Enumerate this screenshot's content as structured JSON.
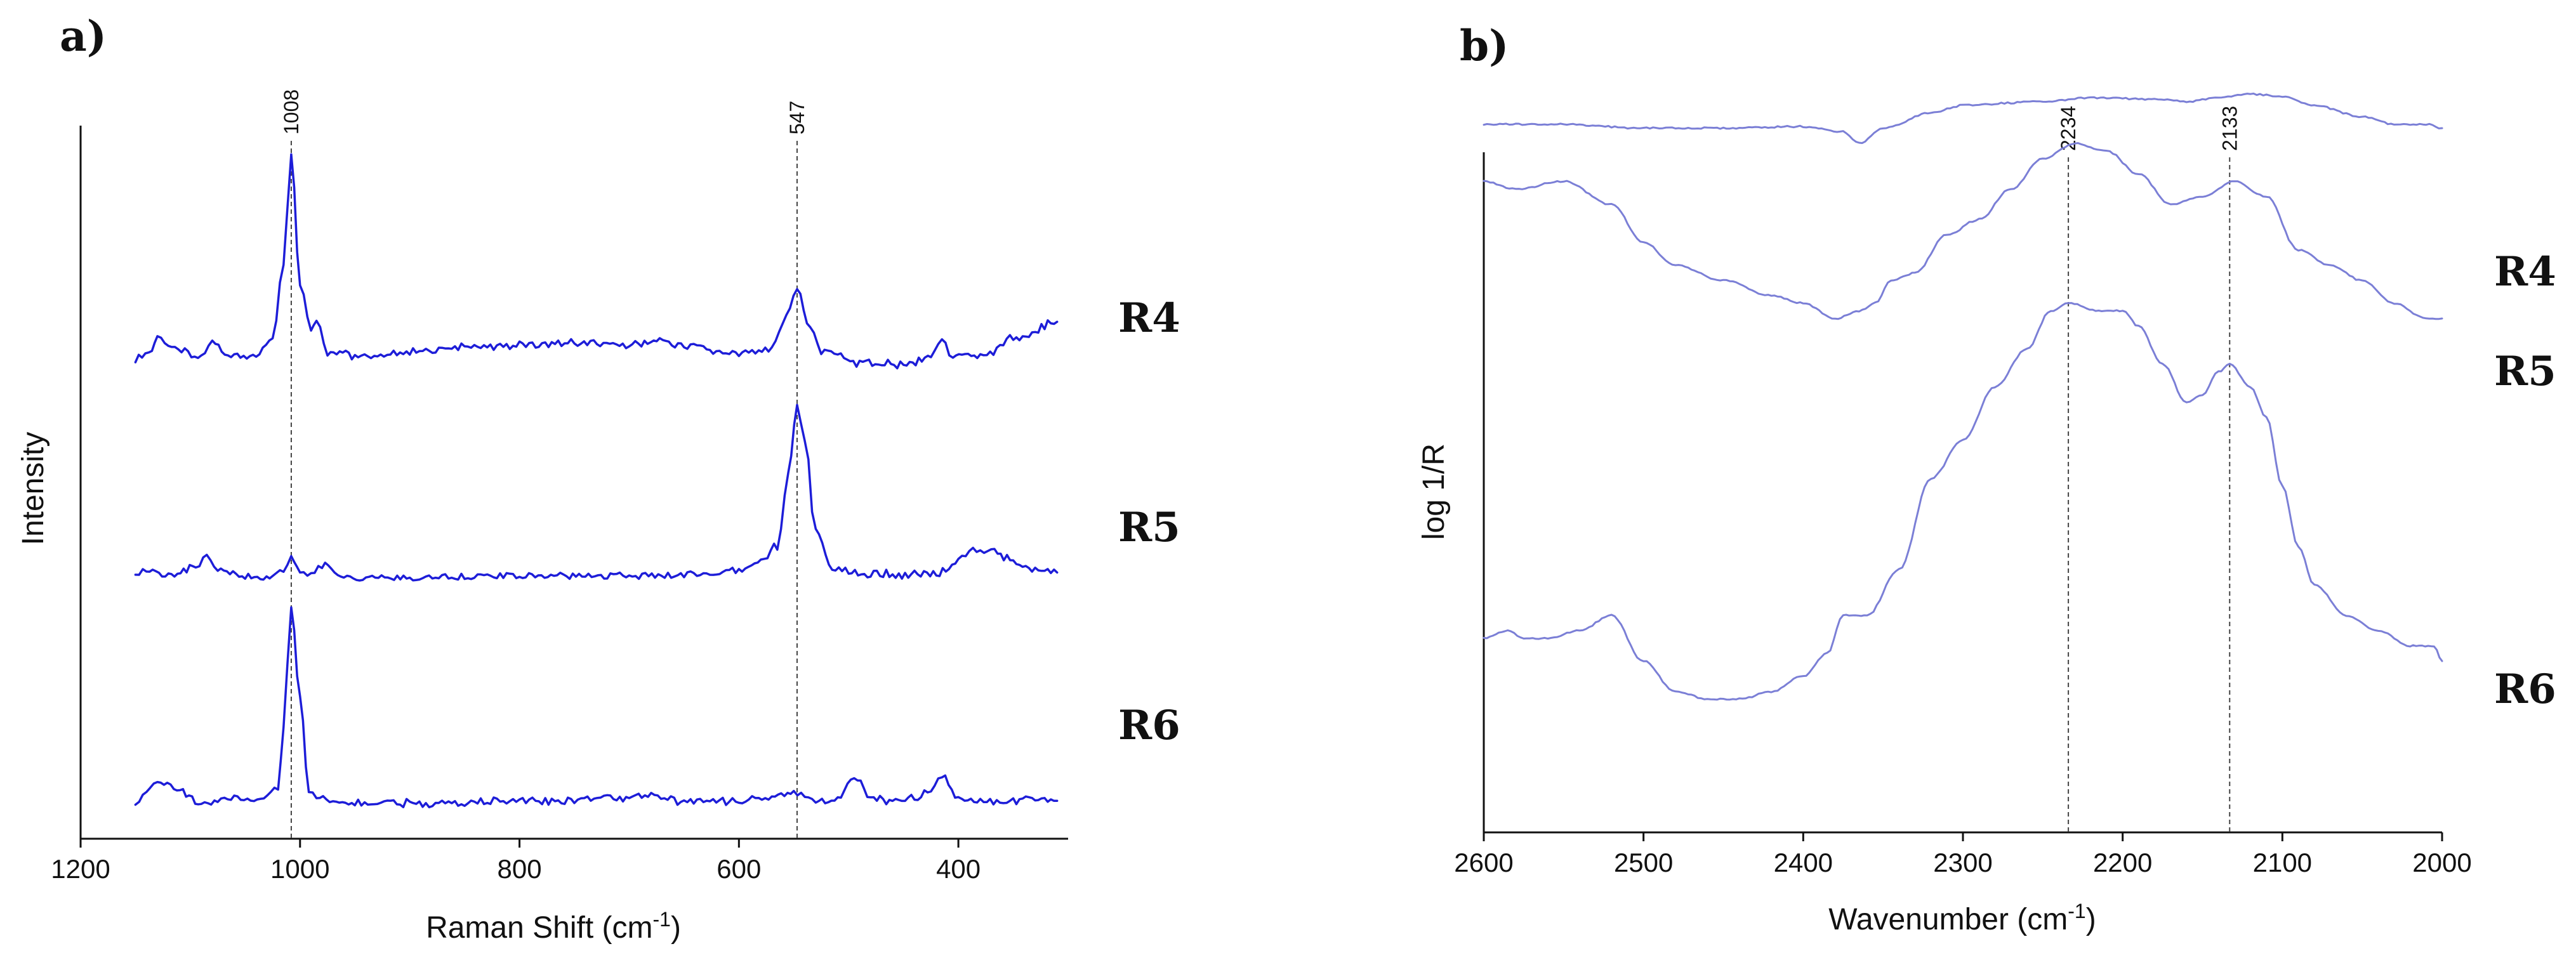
{
  "chart_data": [
    {
      "panel": "a)",
      "type": "line",
      "xlabel": "Raman Shift (cm",
      "xlabel_sup": "-1",
      "xlabel_tail": ")",
      "ylabel": "Intensity",
      "xlim": [
        1200,
        300
      ],
      "y_ticks_shown": false,
      "x_ticks": [
        1200,
        1000,
        800,
        600,
        400
      ],
      "color": "#1d1dd8",
      "reference_lines": [
        {
          "x": 1008,
          "label": "1008"
        },
        {
          "x": 547,
          "label": "547"
        }
      ],
      "series": [
        {
          "name": "R4",
          "x": [
            1150,
            1135,
            1130,
            1120,
            1090,
            1080,
            1060,
            1040,
            1025,
            1015,
            1008,
            1000,
            990,
            985,
            975,
            950,
            900,
            850,
            800,
            750,
            700,
            675,
            650,
            600,
            570,
            560,
            547,
            535,
            525,
            510,
            490,
            470,
            450,
            425,
            415,
            405,
            380,
            350,
            310
          ],
          "y": [
            0.05,
            0.08,
            0.15,
            0.1,
            0.06,
            0.12,
            0.06,
            0.06,
            0.15,
            0.48,
            1.0,
            0.38,
            0.18,
            0.22,
            0.08,
            0.06,
            0.08,
            0.1,
            0.11,
            0.12,
            0.11,
            0.14,
            0.1,
            0.07,
            0.1,
            0.22,
            0.37,
            0.18,
            0.09,
            0.07,
            0.03,
            0.03,
            0.02,
            0.06,
            0.15,
            0.06,
            0.05,
            0.14,
            0.22
          ]
        },
        {
          "name": "R5",
          "x": [
            1150,
            1140,
            1120,
            1095,
            1085,
            1075,
            1050,
            1025,
            1015,
            1008,
            1000,
            990,
            980,
            960,
            900,
            850,
            800,
            700,
            650,
            600,
            580,
            565,
            555,
            547,
            540,
            530,
            515,
            500,
            480,
            460,
            440,
            420,
            400,
            390,
            380,
            370,
            350,
            330,
            310
          ],
          "y": [
            0.05,
            0.08,
            0.05,
            0.1,
            0.16,
            0.08,
            0.05,
            0.04,
            0.08,
            0.16,
            0.07,
            0.06,
            0.11,
            0.04,
            0.04,
            0.05,
            0.05,
            0.05,
            0.06,
            0.08,
            0.14,
            0.22,
            0.62,
            1.0,
            0.82,
            0.3,
            0.1,
            0.08,
            0.06,
            0.06,
            0.06,
            0.06,
            0.14,
            0.18,
            0.2,
            0.19,
            0.14,
            0.08,
            0.07
          ]
        },
        {
          "name": "R6",
          "x": [
            1150,
            1140,
            1130,
            1115,
            1090,
            1060,
            1030,
            1020,
            1015,
            1008,
            1000,
            992,
            985,
            970,
            950,
            900,
            850,
            800,
            750,
            720,
            680,
            650,
            600,
            570,
            550,
            540,
            530,
            510,
            495,
            480,
            460,
            440,
            425,
            415,
            400,
            380,
            350,
            330,
            310
          ],
          "y": [
            0.02,
            0.08,
            0.14,
            0.1,
            0.03,
            0.05,
            0.05,
            0.1,
            0.4,
            1.0,
            0.55,
            0.1,
            0.05,
            0.04,
            0.03,
            0.03,
            0.03,
            0.04,
            0.04,
            0.05,
            0.07,
            0.04,
            0.04,
            0.06,
            0.09,
            0.05,
            0.03,
            0.05,
            0.15,
            0.06,
            0.04,
            0.05,
            0.09,
            0.16,
            0.05,
            0.04,
            0.04,
            0.05,
            0.04
          ]
        }
      ]
    },
    {
      "panel": "b)",
      "type": "line",
      "xlabel": "Wavenumber (cm",
      "xlabel_sup": "-1",
      "xlabel_tail": ")",
      "ylabel": "log 1/R",
      "xlim": [
        2600,
        2000
      ],
      "y_ticks_shown": false,
      "x_ticks": [
        2600,
        2500,
        2400,
        2300,
        2200,
        2100,
        2000
      ],
      "color": "#7b7fd6",
      "reference_lines": [
        {
          "x": 2234,
          "label": "2234"
        },
        {
          "x": 2133,
          "label": "2133"
        }
      ],
      "series": [
        {
          "name": "R4",
          "x": [
            2600,
            2550,
            2500,
            2450,
            2400,
            2375,
            2365,
            2350,
            2320,
            2300,
            2250,
            2220,
            2180,
            2160,
            2140,
            2120,
            2100,
            2080,
            2050,
            2030,
            2010,
            2000
          ],
          "y": [
            0.905,
            0.905,
            0.9,
            0.9,
            0.902,
            0.895,
            0.88,
            0.9,
            0.92,
            0.93,
            0.935,
            0.94,
            0.938,
            0.935,
            0.94,
            0.945,
            0.942,
            0.93,
            0.915,
            0.905,
            0.905,
            0.9
          ]
        },
        {
          "name": "R5",
          "x": [
            2600,
            2580,
            2550,
            2520,
            2500,
            2480,
            2450,
            2420,
            2400,
            2380,
            2365,
            2355,
            2345,
            2330,
            2310,
            2290,
            2270,
            2250,
            2230,
            2210,
            2190,
            2170,
            2150,
            2130,
            2110,
            2090,
            2070,
            2050,
            2030,
            2010,
            2000
          ],
          "y": [
            0.83,
            0.82,
            0.83,
            0.8,
            0.75,
            0.72,
            0.7,
            0.68,
            0.67,
            0.65,
            0.66,
            0.67,
            0.7,
            0.71,
            0.76,
            0.78,
            0.82,
            0.86,
            0.88,
            0.87,
            0.84,
            0.8,
            0.81,
            0.83,
            0.81,
            0.74,
            0.72,
            0.7,
            0.67,
            0.65,
            0.65
          ]
        },
        {
          "name": "R6",
          "x": [
            2600,
            2585,
            2575,
            2560,
            2540,
            2520,
            2500,
            2480,
            2460,
            2440,
            2420,
            2400,
            2385,
            2375,
            2360,
            2340,
            2320,
            2300,
            2280,
            2260,
            2245,
            2234,
            2215,
            2200,
            2190,
            2175,
            2160,
            2150,
            2140,
            2133,
            2120,
            2110,
            2100,
            2090,
            2080,
            2060,
            2040,
            2020,
            2005,
            2000
          ],
          "y": [
            0.23,
            0.24,
            0.23,
            0.23,
            0.24,
            0.26,
            0.2,
            0.16,
            0.15,
            0.15,
            0.16,
            0.18,
            0.21,
            0.26,
            0.26,
            0.32,
            0.44,
            0.49,
            0.56,
            0.61,
            0.66,
            0.67,
            0.66,
            0.66,
            0.64,
            0.59,
            0.54,
            0.55,
            0.58,
            0.59,
            0.56,
            0.52,
            0.43,
            0.35,
            0.3,
            0.26,
            0.24,
            0.22,
            0.22,
            0.2
          ]
        }
      ]
    }
  ]
}
